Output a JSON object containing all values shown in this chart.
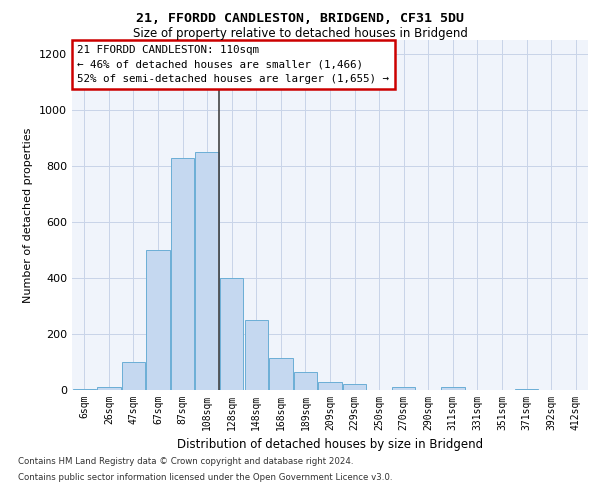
{
  "title_line1": "21, FFORDD CANDLESTON, BRIDGEND, CF31 5DU",
  "title_line2": "Size of property relative to detached houses in Bridgend",
  "xlabel": "Distribution of detached houses by size in Bridgend",
  "ylabel": "Number of detached properties",
  "categories": [
    "6sqm",
    "26sqm",
    "47sqm",
    "67sqm",
    "87sqm",
    "108sqm",
    "128sqm",
    "148sqm",
    "168sqm",
    "189sqm",
    "209sqm",
    "229sqm",
    "250sqm",
    "270sqm",
    "290sqm",
    "311sqm",
    "331sqm",
    "351sqm",
    "371sqm",
    "392sqm",
    "412sqm"
  ],
  "values": [
    5,
    10,
    100,
    500,
    830,
    850,
    400,
    250,
    115,
    65,
    30,
    20,
    0,
    10,
    0,
    10,
    0,
    0,
    5,
    0,
    0
  ],
  "bar_color": "#c5d8f0",
  "bar_edge_color": "#6baed6",
  "vline_index": 5,
  "vline_color": "#444444",
  "annotation_box_text": "21 FFORDD CANDLESTON: 110sqm\n← 46% of detached houses are smaller (1,466)\n52% of semi-detached houses are larger (1,655) →",
  "annotation_box_color": "white",
  "annotation_box_edgecolor": "#cc0000",
  "ylim": [
    0,
    1250
  ],
  "yticks": [
    0,
    200,
    400,
    600,
    800,
    1000,
    1200
  ],
  "footer_line1": "Contains HM Land Registry data © Crown copyright and database right 2024.",
  "footer_line2": "Contains public sector information licensed under the Open Government Licence v3.0.",
  "bg_color": "#f0f4fb",
  "grid_color": "#c8d4e8"
}
